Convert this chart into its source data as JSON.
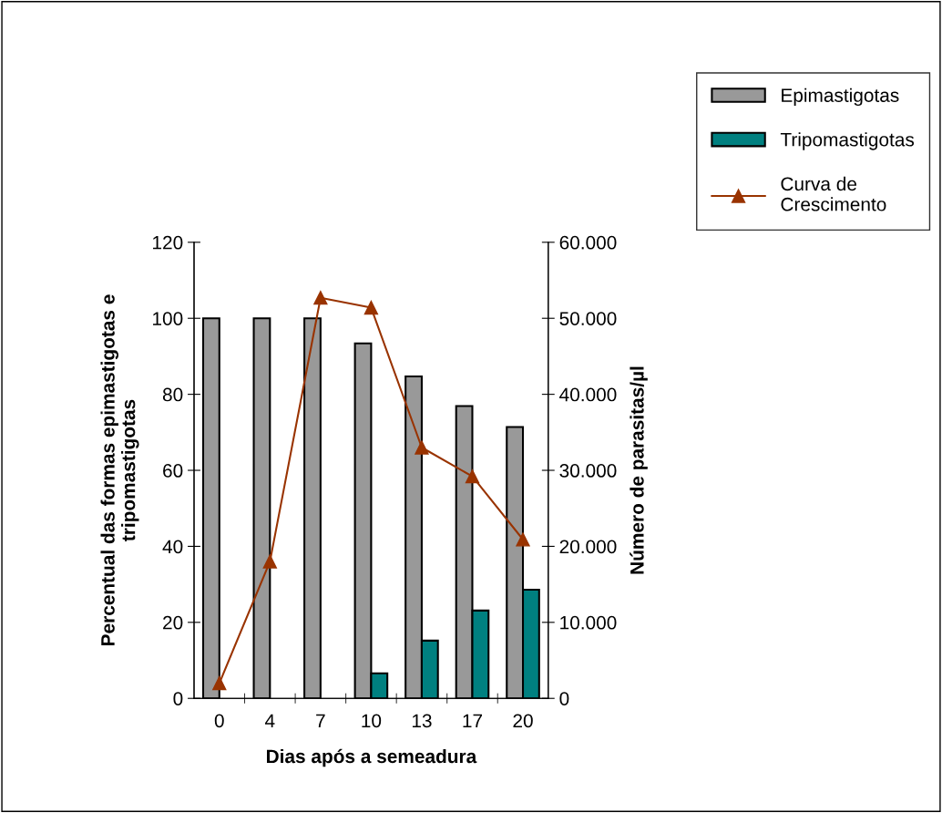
{
  "chart_data": {
    "type": "bar",
    "xlabel": "Dias após a semeadura",
    "ylabel": "Percentual das formas epimastigotas e\ntripomastigotas",
    "y2label": "Número de parasitas/µl",
    "categories": [
      "0",
      "4",
      "7",
      "10",
      "13",
      "17",
      "20"
    ],
    "series": [
      {
        "name": "Epimastigotas",
        "color": "#999999",
        "values": [
          100,
          100,
          100,
          93.4,
          84.7,
          76.9,
          71.4
        ]
      },
      {
        "name": "Tripomastigotas",
        "color": "#008080",
        "values": [
          null,
          null,
          null,
          6.6,
          15.2,
          23.1,
          28.6
        ]
      },
      {
        "name": "Curva de\nCrescimento",
        "type": "line",
        "axis": "y2",
        "color": "#993300",
        "marker": "triangle",
        "values": [
          2000,
          18000,
          52700,
          51400,
          33000,
          29200,
          20900
        ]
      }
    ],
    "ylim": [
      0,
      120
    ],
    "yticks": [
      0,
      20,
      40,
      60,
      80,
      100,
      120
    ],
    "y2lim": [
      0,
      60000
    ],
    "y2ticks": [
      0,
      {
        "value": 10000,
        "label": "10.000"
      },
      {
        "value": 20000,
        "label": "20.000"
      },
      {
        "value": 30000,
        "label": "30.000"
      },
      {
        "value": 40000,
        "label": "40.000"
      },
      {
        "value": 50000,
        "label": "50.000"
      },
      {
        "value": 60000,
        "label": "60.000"
      }
    ],
    "grid": false,
    "legend": "top right"
  }
}
